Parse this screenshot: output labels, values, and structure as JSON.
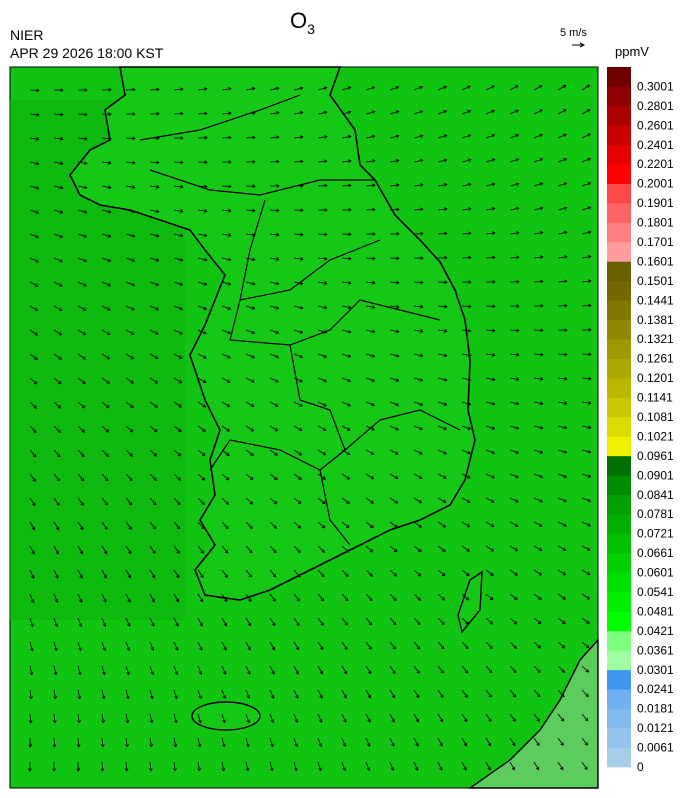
{
  "header": {
    "title": {
      "main": "O",
      "subscript": "3"
    },
    "agency": "NIER",
    "timestamp": "APR 29 2026 18:00 KST"
  },
  "vector_legend": {
    "label": "5 m/s"
  },
  "colorbar": {
    "unit": "ppmV",
    "labels": [
      0,
      0.0061,
      0.0121,
      0.0181,
      0.0241,
      0.0301,
      0.0361,
      0.0421,
      0.0481,
      0.0541,
      0.0601,
      0.0661,
      0.0721,
      0.0781,
      0.0841,
      0.0901,
      0.0961,
      0.1021,
      0.1081,
      0.1141,
      0.1201,
      0.1261,
      0.1321,
      0.1381,
      0.1441,
      0.1501,
      0.1601,
      0.1701,
      0.1801,
      0.1901,
      0.2001,
      0.2201,
      0.2401,
      0.2601,
      0.2801,
      0.3001
    ],
    "colors": [
      "#a6cee8",
      "#94c4ec",
      "#82baf0",
      "#70b0f0",
      "#3c96f0",
      "#a0ffa0",
      "#7cff7c",
      "#00ff00",
      "#00f000",
      "#00e000",
      "#00d000",
      "#00c000",
      "#00b000",
      "#00a000",
      "#008c00",
      "#007000",
      "#f0f000",
      "#dcdc00",
      "#ccc800",
      "#bcb800",
      "#aca800",
      "#a09800",
      "#908800",
      "#807800",
      "#746800",
      "#686000",
      "#ff9c9c",
      "#ff8080",
      "#ff6464",
      "#ff4848",
      "#ff0000",
      "#e40000",
      "#c80000",
      "#ac0000",
      "#900000",
      "#700000"
    ]
  }
}
